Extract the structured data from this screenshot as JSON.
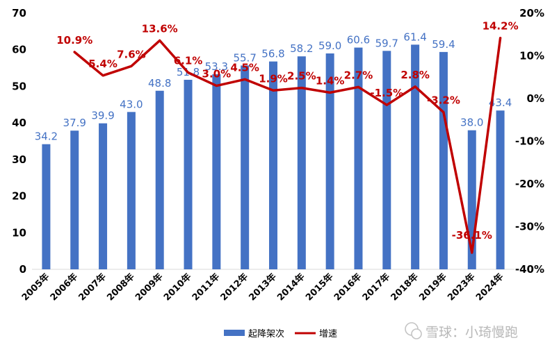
{
  "chart_data": {
    "type": "bar",
    "categories": [
      "2005年",
      "2006年",
      "2007年",
      "2008年",
      "2009年",
      "2010年",
      "2011年",
      "2012年",
      "2013年",
      "2014年",
      "2015年",
      "2016年",
      "2017年",
      "2018年",
      "2019年",
      "2023年",
      "2024年"
    ],
    "series": [
      {
        "name": "起降架次",
        "type": "bar",
        "axis": "left",
        "color": "#4472C4",
        "values": [
          34.2,
          37.9,
          39.9,
          43.0,
          48.8,
          51.8,
          53.3,
          55.7,
          56.8,
          58.2,
          59.0,
          60.6,
          59.7,
          61.4,
          59.4,
          38.0,
          43.4
        ],
        "labels": [
          "34.2",
          "37.9",
          "39.9",
          "43.0",
          "48.8",
          "51.8",
          "53.3",
          "55.7",
          "56.8",
          "58.2",
          "59.0",
          "60.6",
          "59.7",
          "61.4",
          "59.4",
          "38.0",
          "43.4"
        ]
      },
      {
        "name": "增速",
        "type": "line",
        "axis": "right",
        "color": "#C00000",
        "values": [
          null,
          10.9,
          5.4,
          7.6,
          13.6,
          6.1,
          3.0,
          4.5,
          1.9,
          2.5,
          1.4,
          2.7,
          -1.5,
          2.8,
          -3.2,
          -36.1,
          14.2
        ],
        "labels": [
          "",
          "10.9%",
          "5.4%",
          "7.6%",
          "13.6%",
          "6.1%",
          "3.0%",
          "4.5%",
          "1.9%",
          "2.5%",
          "1.4%",
          "2.7%",
          "-1.5%",
          "2.8%",
          "-3.2%",
          "-36.1%",
          "14.2%"
        ]
      }
    ],
    "y_left": {
      "min": 0,
      "max": 70,
      "ticks": [
        "0",
        "10",
        "20",
        "30",
        "40",
        "50",
        "60",
        "70"
      ]
    },
    "y_right": {
      "min": -40,
      "max": 20,
      "ticks": [
        "-40%",
        "-30%",
        "-20%",
        "-10%",
        "0%",
        "10%",
        "20%"
      ]
    },
    "legend_position": "bottom",
    "grid": false
  },
  "legend": {
    "bar_label": "起降架次",
    "line_label": "增速"
  },
  "watermark": {
    "text": "雪球：小琦慢跑"
  }
}
